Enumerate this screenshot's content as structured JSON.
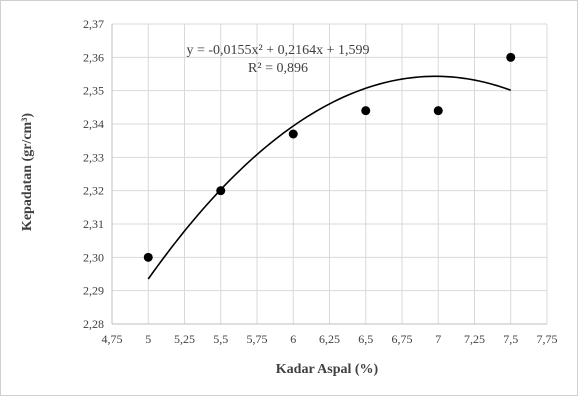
{
  "chart_data": {
    "type": "scatter",
    "title": "",
    "xlabel": "Kadar Aspal (%)",
    "ylabel": "Kepadatan (gr/cm³)",
    "xlim": [
      4.75,
      7.75
    ],
    "ylim": [
      2.28,
      2.37
    ],
    "x_ticks": [
      "4,75",
      "5",
      "5,25",
      "5,5",
      "5,75",
      "6",
      "6,25",
      "6,5",
      "6,75",
      "7",
      "7,25",
      "7,5",
      "7,75"
    ],
    "y_ticks": [
      "2,28",
      "2,29",
      "2,30",
      "2,31",
      "2,32",
      "2,33",
      "2,34",
      "2,35",
      "2,36",
      "2,37"
    ],
    "grid": true,
    "series": [
      {
        "x": [
          5,
          5.5,
          6,
          6.5,
          7,
          7.5
        ],
        "y": [
          2.3,
          2.32,
          2.337,
          2.344,
          2.344,
          2.36
        ],
        "marker_color": "#000000"
      }
    ],
    "trendline": {
      "type": "polynomial",
      "order": 2,
      "coefficients": {
        "a": -0.0155,
        "b": 0.2164,
        "c": 1.599
      },
      "x_range": [
        5,
        7.5
      ],
      "equation_text": "y = -0,0155x² + 0,2164x + 1,599",
      "r2_text": "R² = 0,896",
      "color": "#000000"
    }
  }
}
